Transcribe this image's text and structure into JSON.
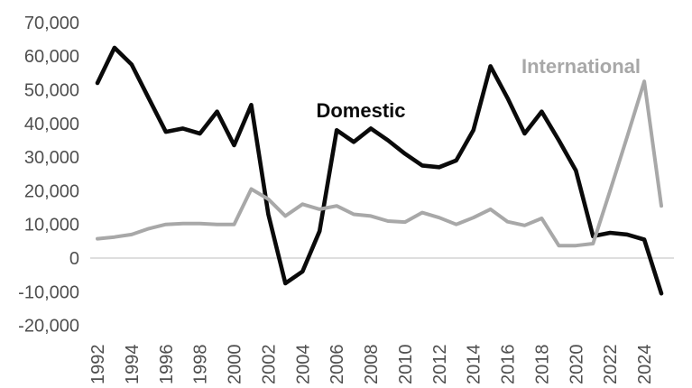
{
  "chart_data": {
    "type": "line",
    "x": [
      1992,
      1993,
      1994,
      1995,
      1996,
      1997,
      1998,
      1999,
      2000,
      2001,
      2002,
      2003,
      2004,
      2005,
      2006,
      2007,
      2008,
      2009,
      2010,
      2011,
      2012,
      2013,
      2014,
      2015,
      2016,
      2017,
      2018,
      2019,
      2020,
      2021,
      2022,
      2023,
      2024,
      2025
    ],
    "series": [
      {
        "name": "Domestic",
        "color": "#0a0a0a",
        "values": [
          52000,
          62500,
          57500,
          47500,
          37500,
          38500,
          37000,
          43500,
          33500,
          45500,
          13000,
          -7500,
          -4000,
          8000,
          38000,
          34500,
          38500,
          35000,
          31000,
          27500,
          27000,
          29000,
          38000,
          57000,
          47500,
          37000,
          43500,
          35000,
          26000,
          6500,
          7500,
          7000,
          5500,
          -10500
        ]
      },
      {
        "name": "International",
        "color": "#a8a8a8",
        "values": [
          5750,
          6250,
          7000,
          8750,
          10000,
          10250,
          10250,
          10000,
          10000,
          20500,
          17500,
          12500,
          16000,
          14500,
          15500,
          13000,
          12500,
          11000,
          10700,
          13500,
          12000,
          10000,
          12000,
          14500,
          10800,
          9700,
          11800,
          3700,
          3700,
          4300,
          20000,
          36000,
          52500,
          15500
        ]
      }
    ],
    "title": "",
    "xlabel": "",
    "ylabel": "",
    "ylim": [
      -20000,
      70000
    ],
    "xlim": [
      1992,
      2025
    ],
    "y_ticks": [
      70000,
      60000,
      50000,
      40000,
      30000,
      20000,
      10000,
      0,
      -10000,
      -20000
    ],
    "y_tick_labels": [
      "70,000",
      "60,000",
      "50,000",
      "40,000",
      "30,000",
      "20,000",
      "10,000",
      "0",
      "-10,000",
      "-20,000"
    ],
    "x_ticks": [
      1992,
      1994,
      1996,
      1998,
      2000,
      2002,
      2004,
      2006,
      2008,
      2010,
      2012,
      2014,
      2016,
      2018,
      2020,
      2022,
      2024
    ],
    "x_tick_labels": [
      "1992",
      "1994",
      "1996",
      "1998",
      "2000",
      "2002",
      "2004",
      "2006",
      "2008",
      "2010",
      "2012",
      "2014",
      "2016",
      "2018",
      "2020",
      "2022",
      "2024"
    ],
    "x_tick_rotation_deg": 90,
    "grid": "horizontal-zero-line-only",
    "legend": "inline-series-labels"
  },
  "labels": {
    "domestic": "Domestic",
    "international": "International"
  },
  "colors": {
    "domestic_line": "#0a0a0a",
    "international_line": "#a8a8a8",
    "tick_text": "#4f4f4f",
    "zero_line": "#d4d4d4",
    "background": "#ffffff"
  }
}
